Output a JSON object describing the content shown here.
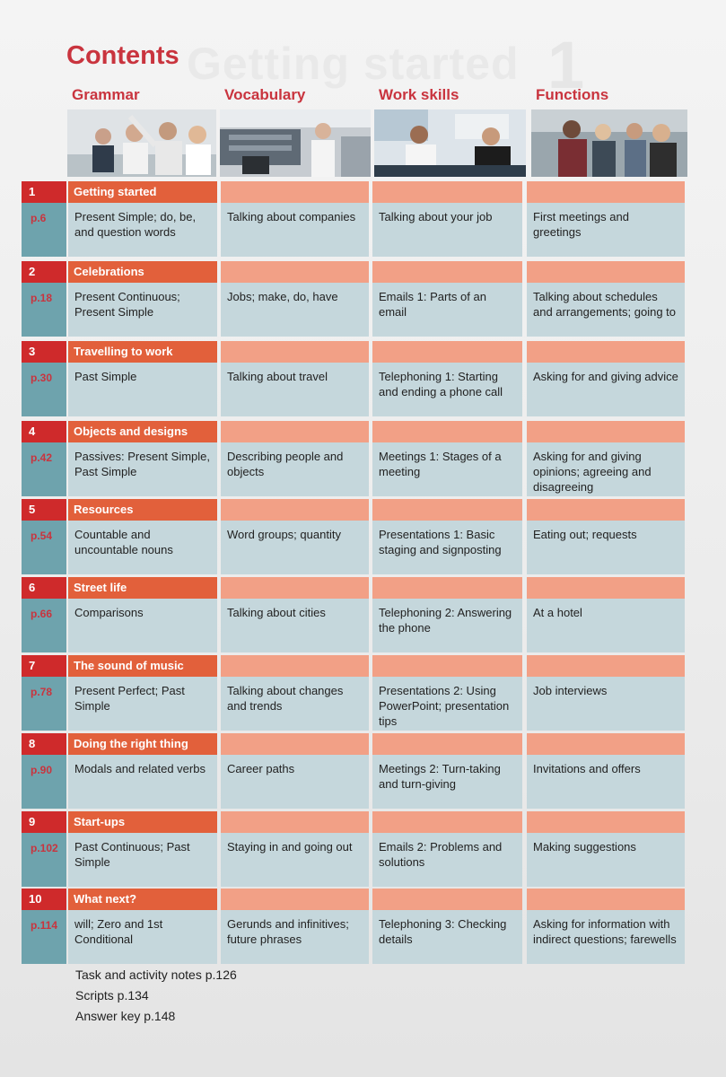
{
  "page": {
    "title": "Contents",
    "ghost_title": "Getting started",
    "ghost_number": "1"
  },
  "columns": [
    "Grammar",
    "Vocabulary",
    "Work skills",
    "Functions"
  ],
  "units": [
    {
      "num": "1",
      "page": "p.6",
      "title": "Getting started",
      "grammar": "Present Simple; do, be, and question words",
      "vocabulary": "Talking about companies",
      "work_skills": "Talking about your job",
      "functions": "First meetings and greetings"
    },
    {
      "num": "2",
      "page": "p.18",
      "title": "Celebrations",
      "grammar": "Present Continuous; Present Simple",
      "vocabulary": "Jobs; make, do, have",
      "work_skills": "Emails 1: Parts of an email",
      "functions": "Talking about schedules and arrangements; going to"
    },
    {
      "num": "3",
      "page": "p.30",
      "title": "Travelling to work",
      "grammar": "Past Simple",
      "vocabulary": "Talking about travel",
      "work_skills": "Telephoning 1: Starting and ending a phone call",
      "functions": "Asking for and giving advice"
    },
    {
      "num": "4",
      "page": "p.42",
      "title": "Objects and designs",
      "grammar": "Passives: Present Simple, Past Simple",
      "vocabulary": "Describing people and objects",
      "work_skills": "Meetings 1: Stages of a meeting",
      "functions": "Asking for and giving opinions; agreeing and disagreeing"
    },
    {
      "num": "5",
      "page": "p.54",
      "title": "Resources",
      "grammar": "Countable and uncountable nouns",
      "vocabulary": "Word groups; quantity",
      "work_skills": "Presentations 1: Basic staging and signposting",
      "functions": "Eating out; requests"
    },
    {
      "num": "6",
      "page": "p.66",
      "title": "Street life",
      "grammar": "Comparisons",
      "vocabulary": "Talking about cities",
      "work_skills": "Telephoning 2: Answering the phone",
      "functions": "At a hotel"
    },
    {
      "num": "7",
      "page": "p.78",
      "title": "The sound of music",
      "grammar": "Present Perfect; Past Simple",
      "vocabulary": "Talking about changes and trends",
      "work_skills": "Presentations 2: Using PowerPoint; presentation tips",
      "functions": "Job interviews"
    },
    {
      "num": "8",
      "page": "p.90",
      "title": "Doing the right thing",
      "grammar": "Modals and related verbs",
      "vocabulary": "Career paths",
      "work_skills": "Meetings 2: Turn-taking and turn-giving",
      "functions": "Invitations and offers"
    },
    {
      "num": "9",
      "page": "p.102",
      "title": "Start-ups",
      "grammar": "Past Continuous; Past Simple",
      "vocabulary": "Staying in and going out",
      "work_skills": "Emails 2: Problems and solutions",
      "functions": "Making suggestions"
    },
    {
      "num": "10",
      "page": "p.114",
      "title": "What next?",
      "grammar": "will; Zero and 1st Conditional",
      "vocabulary": "Gerunds and infinitives; future phrases",
      "work_skills": "Telephoning 3: Checking details",
      "functions": "Asking for information with indirect questions; farewells"
    }
  ],
  "footer": [
    "Task and activity notes  p.126",
    "Scripts  p.134",
    "Answer key  p.148"
  ],
  "colors": {
    "title_red": "#c9343e",
    "unit_number_red": "#cf2a2b",
    "unit_title_orange": "#e2603b",
    "header_salmon": "#f2a086",
    "cell_blue_grey": "#c5d7dc",
    "number_teal": "#6ea3ad"
  }
}
